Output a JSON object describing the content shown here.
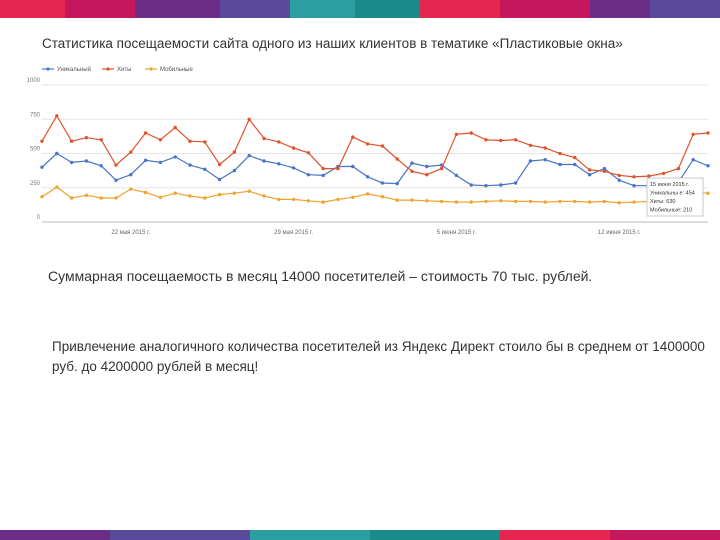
{
  "title": "Статистика посещаемости сайта одного из наших клиентов в тематике «Пластиковые окна»",
  "summary": "Суммарная посещаемость в месяц 14000 посетителей – стоимость 70 тыс. рублей.",
  "note": "Привлечение аналогичного количества посетителей из Яндекс Директ стоило бы в среднем от 1400000 руб. до 4200000 рублей в месяц!",
  "stripe_colors": [
    "#e5264f",
    "#c4175c",
    "#6b2d86",
    "#5a4a9a",
    "#2a9ea0",
    "#1a8a8a"
  ],
  "chart_data": {
    "type": "line",
    "ylim": [
      0,
      1000
    ],
    "yticks": [
      0,
      250,
      500,
      750,
      1000
    ],
    "ytick_labels": [
      "0",
      "250",
      "500",
      "750",
      "1000"
    ],
    "xtick_labels": [
      {
        "index": 6,
        "label": "22 мая 2015 г."
      },
      {
        "index": 17,
        "label": "29 мая 2015 г."
      },
      {
        "index": 28,
        "label": "5 июня 2015 г."
      },
      {
        "index": 39,
        "label": "12 июня 2015 г."
      }
    ],
    "x_count": 46,
    "series": [
      {
        "name": "Уникальный",
        "color": "#4a74c8",
        "values": [
          400,
          500,
          435,
          445,
          410,
          305,
          345,
          450,
          435,
          475,
          415,
          385,
          310,
          375,
          485,
          445,
          425,
          395,
          345,
          340,
          405,
          405,
          330,
          285,
          280,
          430,
          405,
          415,
          340,
          270,
          265,
          270,
          285,
          445,
          455,
          420,
          420,
          345,
          390,
          305,
          265,
          265,
          270,
          290,
          455,
          410
        ]
      },
      {
        "name": "Хиты",
        "color": "#e0522c",
        "values": [
          590,
          775,
          590,
          615,
          600,
          415,
          510,
          650,
          600,
          690,
          590,
          585,
          420,
          510,
          750,
          610,
          585,
          540,
          505,
          390,
          390,
          620,
          570,
          555,
          460,
          370,
          345,
          390,
          640,
          650,
          600,
          595,
          600,
          560,
          540,
          500,
          470,
          380,
          370,
          340,
          330,
          335,
          355,
          390,
          640,
          650
        ]
      },
      {
        "name": "Мобильные",
        "color": "#f0a32e",
        "values": [
          185,
          255,
          175,
          195,
          175,
          175,
          240,
          215,
          180,
          210,
          190,
          175,
          200,
          210,
          225,
          190,
          165,
          165,
          155,
          145,
          165,
          180,
          205,
          185,
          160,
          160,
          155,
          150,
          145,
          145,
          150,
          155,
          150,
          150,
          145,
          150,
          150,
          145,
          150,
          140,
          145,
          150,
          155,
          160,
          215,
          210
        ]
      }
    ],
    "tooltip": {
      "lines": [
        "15 июня 2015 г.",
        "Уникальны е: 454",
        "Хиты: 630",
        "Мобильные: 210"
      ]
    }
  }
}
